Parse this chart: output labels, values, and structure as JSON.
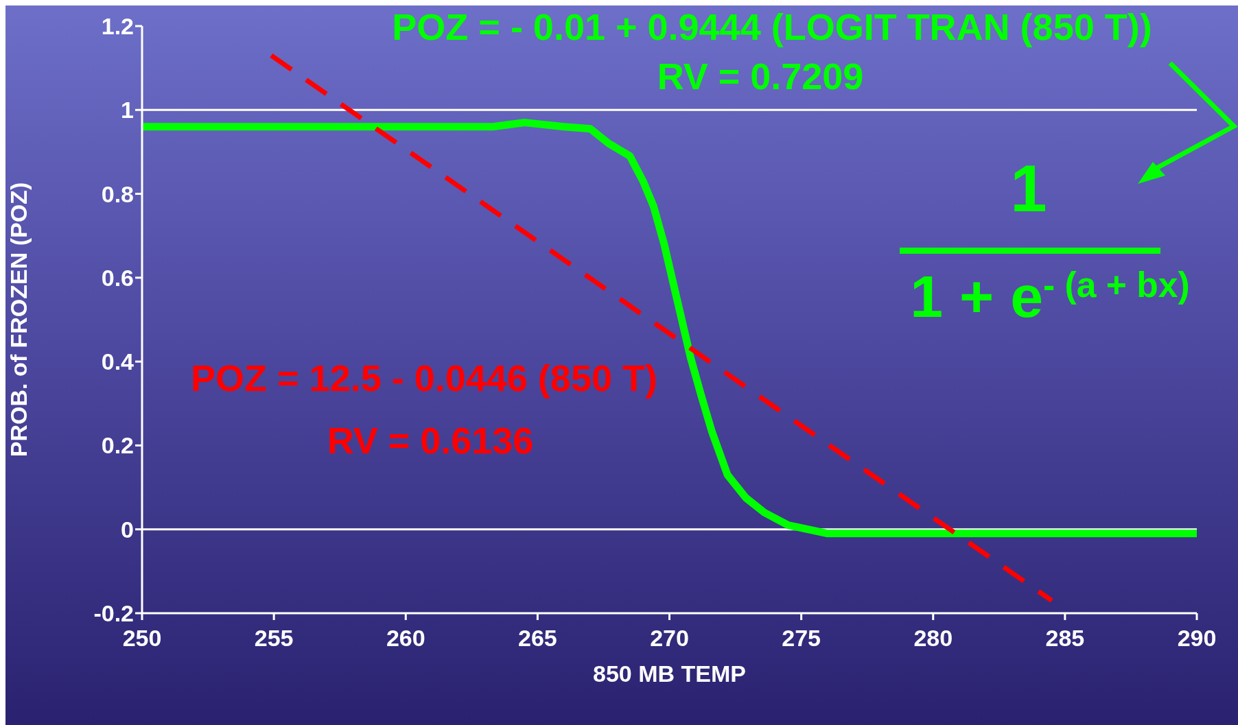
{
  "chart_data": {
    "type": "line",
    "xlabel": "850 MB TEMP",
    "ylabel": "PROB. of FROZEN  (POZ)",
    "xlim": [
      250,
      290
    ],
    "xticks": [
      250,
      255,
      260,
      265,
      270,
      275,
      280,
      285,
      290
    ],
    "ylim": [
      -0.2,
      1.2
    ],
    "yticks": [
      -0.2,
      0,
      0.2,
      0.4,
      0.6,
      0.8,
      1,
      1.2
    ],
    "marker": "none",
    "series": [
      {
        "color": "#00ff00",
        "line_style": "solid",
        "x": [
          250,
          263.3,
          264.5,
          266,
          267,
          267.7,
          268.5,
          269,
          269.4,
          269.8,
          270.3,
          270.8,
          271.2,
          271.6,
          272.2,
          272.9,
          273.6,
          274.5,
          276,
          290
        ],
        "values": [
          0.96,
          0.96,
          0.97,
          0.96,
          0.955,
          0.92,
          0.89,
          0.83,
          0.77,
          0.68,
          0.545,
          0.41,
          0.32,
          0.235,
          0.13,
          0.075,
          0.04,
          0.01,
          -0.01,
          -0.01
        ]
      },
      {
        "color": "#ff0000",
        "line_style": "dashed",
        "x": [
          254.9,
          284.5
        ],
        "values": [
          1.13,
          -0.17
        ]
      }
    ],
    "ref_lines": [
      {
        "axis": "y",
        "value": 1,
        "color": "#ffffff"
      },
      {
        "axis": "y",
        "value": 0,
        "color": "#ffffff"
      }
    ],
    "annotations": [
      "POZ = - 0.01 + 0.9444 (LOGIT TRAN (850 T))",
      "RV = 0.7209",
      "POZ = 12.5 - 0.0446 (850 T)",
      "RV = 0.6136",
      "1",
      "1 + e$^{- (a + bx)}$"
    ]
  }
}
